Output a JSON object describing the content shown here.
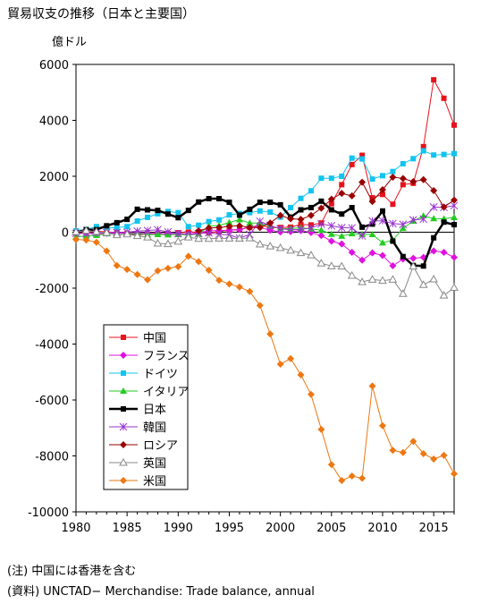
{
  "title": "貿易収支の推移（日本と主要国）",
  "chart_data": {
    "type": "line",
    "unit_label": "億ドル",
    "xlim": [
      1980,
      2017
    ],
    "ylim": [
      -10000,
      6000
    ],
    "x_ticks": [
      "1980",
      "1985",
      "1990",
      "1995",
      "2000",
      "2005",
      "2010",
      "2015"
    ],
    "y_ticks": [
      "6000",
      "4000",
      "2000",
      "0",
      "-2000",
      "-4000",
      "-6000",
      "-8000",
      "-10000"
    ],
    "legend_position": "bottom-left",
    "series": [
      {
        "name": "中国",
        "color": "#e8121b",
        "marker": "square",
        "x": [
          1980,
          1981,
          1982,
          1983,
          1984,
          1985,
          1986,
          1987,
          1988,
          1989,
          1990,
          1991,
          1992,
          1993,
          1994,
          1995,
          1996,
          1997,
          1998,
          1999,
          2000,
          2001,
          2002,
          2003,
          2004,
          2005,
          2006,
          2007,
          2008,
          2009,
          2010,
          2011,
          2012,
          2013,
          2014,
          2015,
          2016,
          2017
        ],
        "y": [
          -20,
          -10,
          40,
          10,
          -10,
          -50,
          -100,
          -60,
          -50,
          -50,
          -20,
          0,
          10,
          -20,
          20,
          80,
          100,
          170,
          260,
          160,
          170,
          180,
          280,
          260,
          330,
          1020,
          1700,
          2420,
          2750,
          1230,
          1350,
          1000,
          1700,
          1750,
          3060,
          5450,
          4790,
          3830
        ]
      },
      {
        "name": "フランス",
        "color": "#e010e0",
        "marker": "diamond",
        "x": [
          1980,
          1981,
          1982,
          1983,
          1984,
          1985,
          1986,
          1987,
          1988,
          1989,
          1990,
          1991,
          1992,
          1993,
          1994,
          1995,
          1996,
          1997,
          1998,
          1999,
          2000,
          2001,
          2002,
          2003,
          2004,
          2005,
          2006,
          2007,
          2008,
          2009,
          2010,
          2011,
          2012,
          2013,
          2014,
          2015,
          2016,
          2017
        ],
        "y": [
          -50,
          -40,
          -60,
          -40,
          -30,
          -30,
          -20,
          -30,
          -50,
          -40,
          -60,
          -70,
          -20,
          50,
          60,
          70,
          90,
          200,
          170,
          70,
          10,
          20,
          60,
          -10,
          -120,
          -320,
          -420,
          -720,
          -1000,
          -740,
          -830,
          -1200,
          -960,
          -930,
          -900,
          -670,
          -720,
          -900
        ]
      },
      {
        "name": "ドイツ",
        "color": "#11c4f0",
        "marker": "square",
        "x": [
          1980,
          1981,
          1982,
          1983,
          1984,
          1985,
          1986,
          1987,
          1988,
          1989,
          1990,
          1991,
          1992,
          1993,
          1994,
          1995,
          1996,
          1997,
          1998,
          1999,
          2000,
          2001,
          2002,
          2003,
          2004,
          2005,
          2006,
          2007,
          2008,
          2009,
          2010,
          2011,
          2012,
          2013,
          2014,
          2015,
          2016,
          2017
        ],
        "y": [
          50,
          100,
          200,
          150,
          170,
          200,
          400,
          530,
          660,
          740,
          700,
          200,
          250,
          380,
          440,
          620,
          670,
          700,
          760,
          720,
          540,
          880,
          1210,
          1480,
          1930,
          1930,
          2000,
          2650,
          2620,
          1900,
          2020,
          2170,
          2450,
          2630,
          2910,
          2760,
          2780,
          2810
        ]
      },
      {
        "name": "イタリア",
        "color": "#22cc22",
        "marker": "triangle",
        "x": [
          1980,
          1981,
          1982,
          1983,
          1984,
          1985,
          1986,
          1987,
          1988,
          1989,
          1990,
          1991,
          1992,
          1993,
          1994,
          1995,
          1996,
          1997,
          1998,
          1999,
          2000,
          2001,
          2002,
          2003,
          2004,
          2005,
          2006,
          2007,
          2008,
          2009,
          2010,
          2011,
          2012,
          2013,
          2014,
          2015,
          2016,
          2017
        ],
        "y": [
          -170,
          -130,
          -110,
          -50,
          -80,
          -70,
          -30,
          -90,
          -80,
          -90,
          -80,
          -100,
          -70,
          220,
          240,
          350,
          450,
          330,
          330,
          230,
          120,
          130,
          160,
          120,
          70,
          -70,
          -140,
          -50,
          -70,
          -80,
          -380,
          -280,
          140,
          400,
          590,
          490,
          480,
          530
        ]
      },
      {
        "name": "日本",
        "color": "#000000",
        "marker": "square",
        "x": [
          1980,
          1981,
          1982,
          1983,
          1984,
          1985,
          1986,
          1987,
          1988,
          1989,
          1990,
          1991,
          1992,
          1993,
          1994,
          1995,
          1996,
          1997,
          1998,
          1999,
          2000,
          2001,
          2002,
          2003,
          2004,
          2005,
          2006,
          2007,
          2008,
          2009,
          2010,
          2011,
          2012,
          2013,
          2014,
          2015,
          2016,
          2017
        ],
        "y": [
          -20,
          90,
          90,
          230,
          340,
          460,
          820,
          800,
          780,
          650,
          520,
          780,
          1080,
          1200,
          1200,
          1070,
          610,
          820,
          1070,
          1070,
          980,
          540,
          800,
          880,
          1110,
          800,
          650,
          880,
          180,
          290,
          760,
          -320,
          -870,
          -1190,
          -1210,
          -200,
          360,
          270
        ]
      },
      {
        "name": "韓国",
        "color": "#9933cc",
        "marker": "star",
        "x": [
          1980,
          1981,
          1982,
          1983,
          1984,
          1985,
          1986,
          1987,
          1988,
          1989,
          1990,
          1991,
          1992,
          1993,
          1994,
          1995,
          1996,
          1997,
          1998,
          1999,
          2000,
          2001,
          2002,
          2003,
          2004,
          2005,
          2006,
          2007,
          2008,
          2009,
          2010,
          2011,
          2012,
          2013,
          2014,
          2015,
          2016,
          2017
        ],
        "y": [
          -40,
          -40,
          -20,
          -10,
          -10,
          0,
          40,
          60,
          90,
          10,
          -50,
          -90,
          -50,
          -20,
          -70,
          -100,
          -210,
          -80,
          390,
          240,
          120,
          90,
          100,
          150,
          290,
          230,
          160,
          150,
          -130,
          400,
          410,
          310,
          280,
          440,
          470,
          900,
          890,
          950
        ]
      },
      {
        "name": "ロシア",
        "color": "#990000",
        "marker": "diamond",
        "x": [
          1992,
          1993,
          1994,
          1995,
          1996,
          1997,
          1998,
          1999,
          2000,
          2001,
          2002,
          2003,
          2004,
          2005,
          2006,
          2007,
          2008,
          2009,
          2010,
          2011,
          2012,
          2013,
          2014,
          2015,
          2016,
          2017
        ],
        "y": [
          50,
          150,
          170,
          210,
          230,
          170,
          170,
          330,
          600,
          480,
          460,
          600,
          860,
          1180,
          1390,
          1300,
          1790,
          1100,
          1520,
          1970,
          1920,
          1810,
          1880,
          1490,
          900,
          1150
        ]
      },
      {
        "name": "英国",
        "color": "#888888",
        "marker": "triangle-open",
        "x": [
          1980,
          1981,
          1982,
          1983,
          1984,
          1985,
          1986,
          1987,
          1988,
          1989,
          1990,
          1991,
          1992,
          1993,
          1994,
          1995,
          1996,
          1997,
          1998,
          1999,
          2000,
          2001,
          2002,
          2003,
          2004,
          2005,
          2006,
          2007,
          2008,
          2009,
          2010,
          2011,
          2012,
          2013,
          2014,
          2015,
          2016,
          2017
        ],
        "y": [
          10,
          60,
          20,
          -20,
          -100,
          -70,
          -130,
          -180,
          -400,
          -420,
          -330,
          -180,
          -230,
          -230,
          -220,
          -220,
          -220,
          -210,
          -430,
          -500,
          -560,
          -650,
          -740,
          -820,
          -1110,
          -1210,
          -1220,
          -1550,
          -1780,
          -1690,
          -1730,
          -1690,
          -2200,
          -1220,
          -1880,
          -1680,
          -2260,
          -1980
        ]
      },
      {
        "name": "米国",
        "color": "#ee7711",
        "marker": "diamond",
        "x": [
          1980,
          1981,
          1982,
          1983,
          1984,
          1985,
          1986,
          1987,
          1988,
          1989,
          1990,
          1991,
          1992,
          1993,
          1994,
          1995,
          1996,
          1997,
          1998,
          1999,
          2000,
          2001,
          2002,
          2003,
          2004,
          2005,
          2006,
          2007,
          2008,
          2009,
          2010,
          2011,
          2012,
          2013,
          2014,
          2015,
          2016,
          2017
        ],
        "y": [
          -260,
          -280,
          -360,
          -670,
          -1190,
          -1330,
          -1510,
          -1700,
          -1380,
          -1290,
          -1230,
          -860,
          -1050,
          -1360,
          -1720,
          -1850,
          -1960,
          -2120,
          -2620,
          -3640,
          -4720,
          -4520,
          -5100,
          -5800,
          -7050,
          -8310,
          -8880,
          -8720,
          -8800,
          -5500,
          -6920,
          -7800,
          -7880,
          -7480,
          -7920,
          -8110,
          -7980,
          -8640
        ]
      }
    ]
  },
  "notes": {
    "note1": "(注) 中国には香港を含む",
    "note2": "(資料) UNCTAD− Merchandise: Trade balance, annual"
  }
}
